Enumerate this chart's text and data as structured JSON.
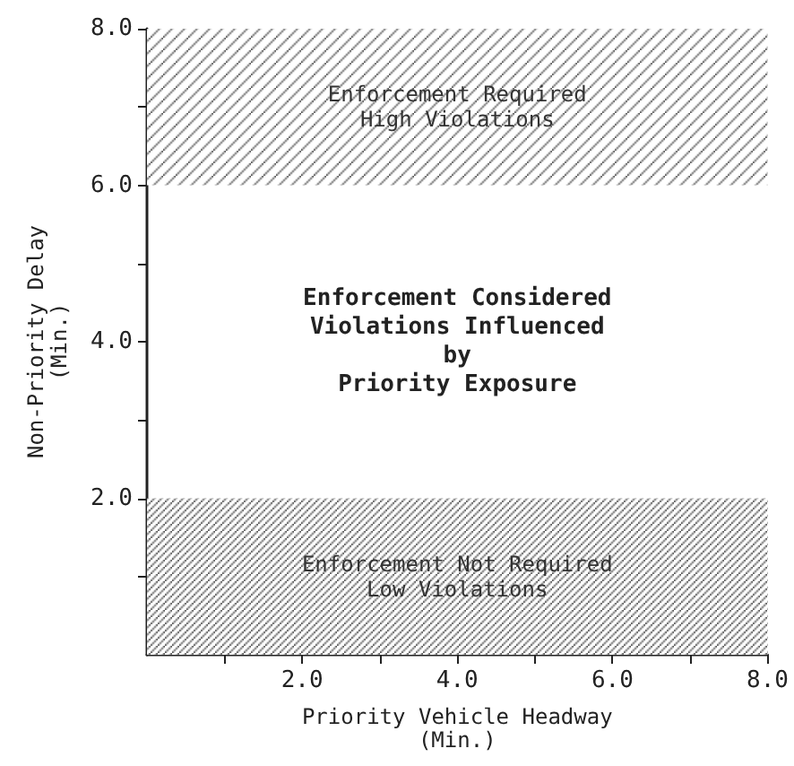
{
  "chart_data": {
    "type": "line",
    "xlabel": "Priority Vehicle Headway\n(Min.)",
    "ylabel": "Non-Priority Delay\n(Min.)",
    "xlim": [
      0,
      8
    ],
    "ylim": [
      0,
      8
    ],
    "xticks": [
      {
        "value": 1,
        "label": null
      },
      {
        "value": 2,
        "label": "2.0"
      },
      {
        "value": 3,
        "label": null
      },
      {
        "value": 4,
        "label": "4.0"
      },
      {
        "value": 5,
        "label": null
      },
      {
        "value": 6,
        "label": "6.0"
      },
      {
        "value": 7,
        "label": null
      },
      {
        "value": 8,
        "label": "8.0"
      }
    ],
    "yticks": [
      {
        "value": 1,
        "label": null
      },
      {
        "value": 2,
        "label": "2.0"
      },
      {
        "value": 3,
        "label": null
      },
      {
        "value": 4,
        "label": "4.0"
      },
      {
        "value": 5,
        "label": null
      },
      {
        "value": 6,
        "label": "6.0"
      },
      {
        "value": 7,
        "label": null
      },
      {
        "value": 8,
        "label": "8.0"
      }
    ],
    "bands": [
      {
        "axis": "y",
        "from": 6,
        "to": 8,
        "label": "Enforcement Required\nHigh Violations",
        "color": "#555555"
      },
      {
        "axis": "y",
        "from": 0,
        "to": 2,
        "label": "Enforcement Not Required\nLow Violations",
        "color": "#555555"
      }
    ],
    "annotations": [
      "Enforcement Considered\nViolations Influenced\nby\nPriority Exposure"
    ]
  }
}
